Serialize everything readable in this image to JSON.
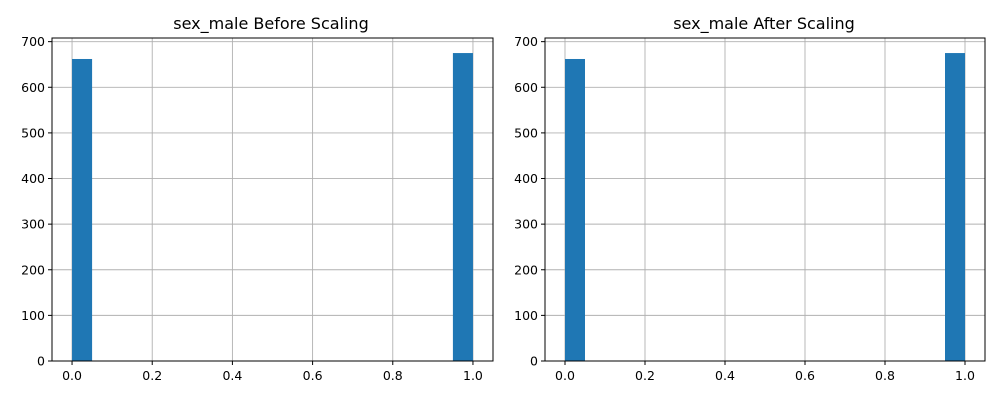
{
  "chart_data": [
    {
      "type": "bar",
      "title": "sex_male Before Scaling",
      "xlabel": "",
      "ylabel": "",
      "bins": [
        {
          "x0": 0.0,
          "x1": 0.05,
          "count": 662
        },
        {
          "x0": 0.95,
          "x1": 1.0,
          "count": 675
        }
      ],
      "xlim": [
        -0.05,
        1.05
      ],
      "ylim": [
        0,
        708
      ],
      "xticks": [
        "0.0",
        "0.2",
        "0.4",
        "0.6",
        "0.8",
        "1.0"
      ],
      "yticks": [
        "0",
        "100",
        "200",
        "300",
        "400",
        "500",
        "600",
        "700"
      ],
      "grid": true,
      "bar_color": "#1f77b4"
    },
    {
      "type": "bar",
      "title": "sex_male After Scaling",
      "xlabel": "",
      "ylabel": "",
      "bins": [
        {
          "x0": 0.0,
          "x1": 0.05,
          "count": 662
        },
        {
          "x0": 0.95,
          "x1": 1.0,
          "count": 675
        }
      ],
      "xlim": [
        -0.05,
        1.05
      ],
      "ylim": [
        0,
        708
      ],
      "xticks": [
        "0.0",
        "0.2",
        "0.4",
        "0.6",
        "0.8",
        "1.0"
      ],
      "yticks": [
        "0",
        "100",
        "200",
        "300",
        "400",
        "500",
        "600",
        "700"
      ],
      "grid": true,
      "bar_color": "#1f77b4"
    }
  ]
}
